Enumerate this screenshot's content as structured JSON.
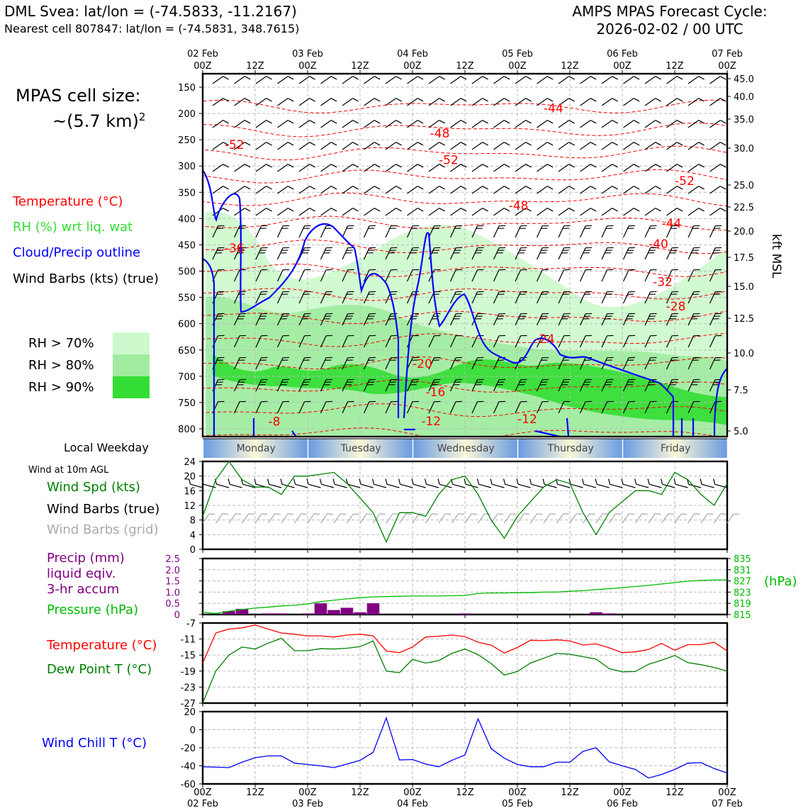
{
  "header": {
    "title_left": "DML Svea: lat/lon = (-74.5833, -11.2167)",
    "subtitle_left": "Nearest cell 807847: lat/lon = (-74.5831, 348.7615)",
    "title_right_1": "AMPS MPAS Forecast Cycle:",
    "title_right_2": "2026-02-02 / 00 UTC"
  },
  "left_panel": {
    "cell_size_label": "MPAS cell size:",
    "cell_size_value": "~(5.7 km)",
    "cell_size_exp": "2",
    "legend_temp": "Temperature (°C)",
    "legend_rh": "RH (%) wrt liq. wat",
    "legend_cloud": "Cloud/Precip outline",
    "legend_wind": "Wind Barbs (kts) (true)",
    "rh70": "RH > 70%",
    "rh80": "RH > 80%",
    "rh90": "RH > 90%",
    "local_weekday": "Local Weekday",
    "wind_10m": "Wind at 10m AGL",
    "wind_spd": "Wind Spd (kts)",
    "wind_barbs_true": "Wind Barbs (true)",
    "wind_barbs_grid": "Wind Barbs (grid)",
    "precip1": "Precip (mm)",
    "precip2": "liquid eqiv.",
    "precip3": "3-hr accum",
    "pressure": "Pressure (hPa)",
    "temp": "Temperature (°C)",
    "dewpoint": "Dew Point T (°C)",
    "windchill": "Wind Chill T (°C)"
  },
  "colors": {
    "temp": "#ff0000",
    "rh_label": "#33dd33",
    "cloud": "#0000ff",
    "rh70": "#ccfacc",
    "rh80": "#a0eba0",
    "rh90": "#33dd33",
    "wind_spd": "#008000",
    "barbs_grid": "#aaaaaa",
    "precip": "#800080",
    "pressure": "#00bb00",
    "dewpoint": "#008000",
    "windchill": "#0000ff"
  },
  "weekdays": [
    "Monday",
    "Tuesday",
    "Wednesday",
    "Thursday",
    "Friday"
  ],
  "time_ticks_top": {
    "dates": [
      "02 Feb",
      "",
      "03 Feb",
      "",
      "04 Feb",
      "",
      "05 Feb",
      "",
      "06 Feb",
      "",
      "07 Feb"
    ],
    "hours": [
      "00Z",
      "12Z",
      "00Z",
      "12Z",
      "00Z",
      "12Z",
      "00Z",
      "12Z",
      "00Z",
      "12Z",
      "00Z"
    ]
  },
  "time_ticks_bottom": {
    "hours": [
      "00Z",
      "12Z",
      "00Z",
      "12Z",
      "00Z",
      "12Z",
      "00Z",
      "12Z",
      "00Z",
      "12Z",
      "00Z"
    ],
    "dates": [
      "02 Feb",
      "",
      "03 Feb",
      "",
      "04 Feb",
      "",
      "05 Feb",
      "",
      "06 Feb",
      "",
      "07 Feb"
    ]
  },
  "chart_data": [
    {
      "type": "heatmap",
      "panel": "time-height cross section",
      "y_left_label": "",
      "y_left_ticks": [
        "150",
        "200",
        "250",
        "300",
        "350",
        "400",
        "450",
        "500",
        "550",
        "600",
        "650",
        "700",
        "750",
        "800"
      ],
      "y_right_label": "kft MSL",
      "y_right_ticks": [
        "45.0",
        "40.0",
        "35.0",
        "30.0",
        "25.0",
        "22.5",
        "20.0",
        "17.5",
        "15.0",
        "12.5",
        "10.0",
        "7.5",
        "5.0"
      ],
      "temperature_contour_labels": [
        {
          "value": "-44",
          "x_h": 78,
          "p": 198
        },
        {
          "value": "-48",
          "x_h": 52,
          "p": 246
        },
        {
          "value": "-52",
          "x_h": 5,
          "p": 267
        },
        {
          "value": "-52",
          "x_h": 54,
          "p": 296
        },
        {
          "value": "-52",
          "x_h": 108,
          "p": 336
        },
        {
          "value": "-48",
          "x_h": 70,
          "p": 383
        },
        {
          "value": "-44",
          "x_h": 105,
          "p": 417
        },
        {
          "value": "-36",
          "x_h": 5,
          "p": 464
        },
        {
          "value": "-40",
          "x_h": 102,
          "p": 456
        },
        {
          "value": "-32",
          "x_h": 103,
          "p": 528
        },
        {
          "value": "-28",
          "x_h": 106,
          "p": 575
        },
        {
          "value": "-24",
          "x_h": 76,
          "p": 637
        },
        {
          "value": "-20",
          "x_h": 48,
          "p": 684
        },
        {
          "value": "-16",
          "x_h": 51,
          "p": 738
        },
        {
          "value": "-12",
          "x_h": 50,
          "p": 793
        },
        {
          "value": "-12",
          "x_h": 72,
          "p": 789
        },
        {
          "value": "-8",
          "x_h": 15,
          "p": 794
        }
      ]
    },
    {
      "type": "line",
      "panel": "wind speed",
      "ylabel": "",
      "ylim": [
        0,
        24
      ],
      "y_ticks": [
        "24",
        "20",
        "16",
        "12",
        "8",
        "4",
        "0"
      ],
      "x_hours": [
        0,
        3,
        6,
        9,
        12,
        15,
        18,
        21,
        24,
        27,
        30,
        33,
        36,
        39,
        42,
        45,
        48,
        51,
        54,
        57,
        60,
        63,
        66,
        69,
        72,
        75,
        78,
        81,
        84,
        87,
        90,
        93,
        96,
        99,
        102,
        105,
        108,
        111,
        114,
        117,
        120
      ],
      "series": [
        {
          "values": [
            9,
            19,
            24,
            19,
            17,
            17,
            15,
            20,
            20,
            20.5,
            21,
            18,
            14,
            10,
            2,
            10,
            10,
            9,
            15,
            19,
            20,
            15,
            8,
            3,
            9,
            13,
            17,
            19,
            18,
            10,
            4,
            10,
            13,
            16,
            16,
            15,
            21,
            19,
            15,
            12,
            18
          ]
        }
      ]
    },
    {
      "type": "bar",
      "panel": "precipitation and pressure",
      "y_left_ticks": [
        "2.5",
        "2.0",
        "1.5",
        "1.0",
        "0.5",
        "0"
      ],
      "y_right_ticks": [
        "835",
        "831",
        "827",
        "823",
        "819",
        "815"
      ],
      "y_right_label": "(hPa)",
      "ylim_left": [
        0,
        2.5
      ],
      "ylim_right": [
        815,
        835
      ],
      "precip_bars": [
        {
          "x_h": 6,
          "value": 0.15
        },
        {
          "x_h": 9,
          "value": 0.25
        },
        {
          "x_h": 15,
          "value": 0.05
        },
        {
          "x_h": 18,
          "value": 0.05
        },
        {
          "x_h": 24,
          "value": 0.05
        },
        {
          "x_h": 27,
          "value": 0.5
        },
        {
          "x_h": 30,
          "value": 0.2
        },
        {
          "x_h": 33,
          "value": 0.3
        },
        {
          "x_h": 36,
          "value": 0.1
        },
        {
          "x_h": 39,
          "value": 0.5
        },
        {
          "x_h": 60,
          "value": 0.05
        },
        {
          "x_h": 90,
          "value": 0.1
        },
        {
          "x_h": 93,
          "value": 0.05
        }
      ],
      "pressure_x_hours": [
        0,
        3,
        6,
        9,
        12,
        15,
        18,
        21,
        24,
        27,
        30,
        33,
        36,
        39,
        42,
        45,
        48,
        51,
        54,
        57,
        60,
        63,
        66,
        69,
        72,
        75,
        78,
        81,
        84,
        87,
        90,
        93,
        96,
        99,
        102,
        105,
        108,
        111,
        114,
        117,
        120
      ],
      "pressure": [
        815.8,
        815.4,
        816.2,
        816.8,
        817.3,
        817.6,
        818.1,
        818.3,
        818.8,
        819.6,
        820.1,
        820.6,
        821.0,
        821.3,
        821.4,
        821.5,
        821.6,
        821.6,
        821.6,
        821.7,
        821.8,
        822.5,
        822.7,
        822.7,
        822.8,
        822.8,
        823.0,
        823.0,
        823.3,
        823.5,
        823.9,
        824.2,
        824.6,
        825.0,
        825.4,
        825.9,
        826.4,
        826.9,
        827.2,
        827.3,
        827.4
      ]
    },
    {
      "type": "line",
      "panel": "temperature and dew point",
      "ylim": [
        -27,
        -7
      ],
      "y_ticks": [
        "-7",
        "-11",
        "-15",
        "-19",
        "-23",
        "-27"
      ],
      "x_hours": [
        0,
        3,
        6,
        9,
        12,
        15,
        18,
        21,
        24,
        27,
        30,
        33,
        36,
        39,
        42,
        45,
        48,
        51,
        54,
        57,
        60,
        63,
        66,
        69,
        72,
        75,
        78,
        81,
        84,
        87,
        90,
        93,
        96,
        99,
        102,
        105,
        108,
        111,
        114,
        117,
        120
      ],
      "series": [
        {
          "name": "Temperature",
          "values": [
            -17,
            -9.5,
            -8.5,
            -8.2,
            -7.5,
            -8.5,
            -9.5,
            -9.8,
            -10.2,
            -10.2,
            -10.5,
            -10.0,
            -9.8,
            -10.2,
            -14,
            -14.4,
            -13,
            -10.5,
            -10.3,
            -10.0,
            -10.4,
            -11.8,
            -12.5,
            -14.5,
            -13.1,
            -11.3,
            -11.4,
            -11.2,
            -11.5,
            -12.5,
            -12.2,
            -13.2,
            -14.4,
            -14.2,
            -13.6,
            -12.1,
            -13.8,
            -12.4,
            -12.4,
            -11.8,
            -14
          ]
        },
        {
          "name": "Dew Point",
          "values": [
            -27,
            -19,
            -15,
            -13,
            -13.5,
            -12,
            -10.8,
            -13.9,
            -13.9,
            -13.4,
            -13.5,
            -13.3,
            -12.9,
            -11.5,
            -19.0,
            -19.4,
            -16.1,
            -17,
            -16.4,
            -14.6,
            -13.5,
            -14.9,
            -17.1,
            -20,
            -19.1,
            -17,
            -15.8,
            -14.6,
            -14.8,
            -15.4,
            -16,
            -18.4,
            -19.2,
            -19.1,
            -17.3,
            -16.3,
            -15.1,
            -16.9,
            -17.4,
            -18.1,
            -19
          ]
        }
      ]
    },
    {
      "type": "line",
      "panel": "wind chill",
      "ylim": [
        -60,
        20
      ],
      "y_ticks": [
        "20",
        "0",
        "-20",
        "-40",
        "-60"
      ],
      "x_hours": [
        0,
        3,
        6,
        9,
        12,
        15,
        18,
        21,
        24,
        27,
        30,
        33,
        36,
        39,
        42,
        45,
        48,
        51,
        54,
        57,
        60,
        63,
        66,
        69,
        72,
        75,
        78,
        81,
        84,
        87,
        90,
        93,
        96,
        99,
        102,
        105,
        108,
        111,
        114,
        117,
        120
      ],
      "series": [
        {
          "name": "Wind Chill",
          "values": [
            -41,
            -41.5,
            -42,
            -36,
            -31,
            -29,
            -29,
            -37,
            -38.5,
            -40,
            -42,
            -38,
            -34,
            -25,
            13,
            -33.5,
            -33,
            -38,
            -41,
            -34,
            -28,
            12,
            -21,
            -31.5,
            -38.5,
            -41,
            -41,
            -36,
            -36,
            -24,
            -20,
            -35.5,
            -40,
            -44,
            -53.5,
            -49.5,
            -44,
            -37,
            -36.5,
            -43,
            -48
          ]
        }
      ]
    }
  ]
}
